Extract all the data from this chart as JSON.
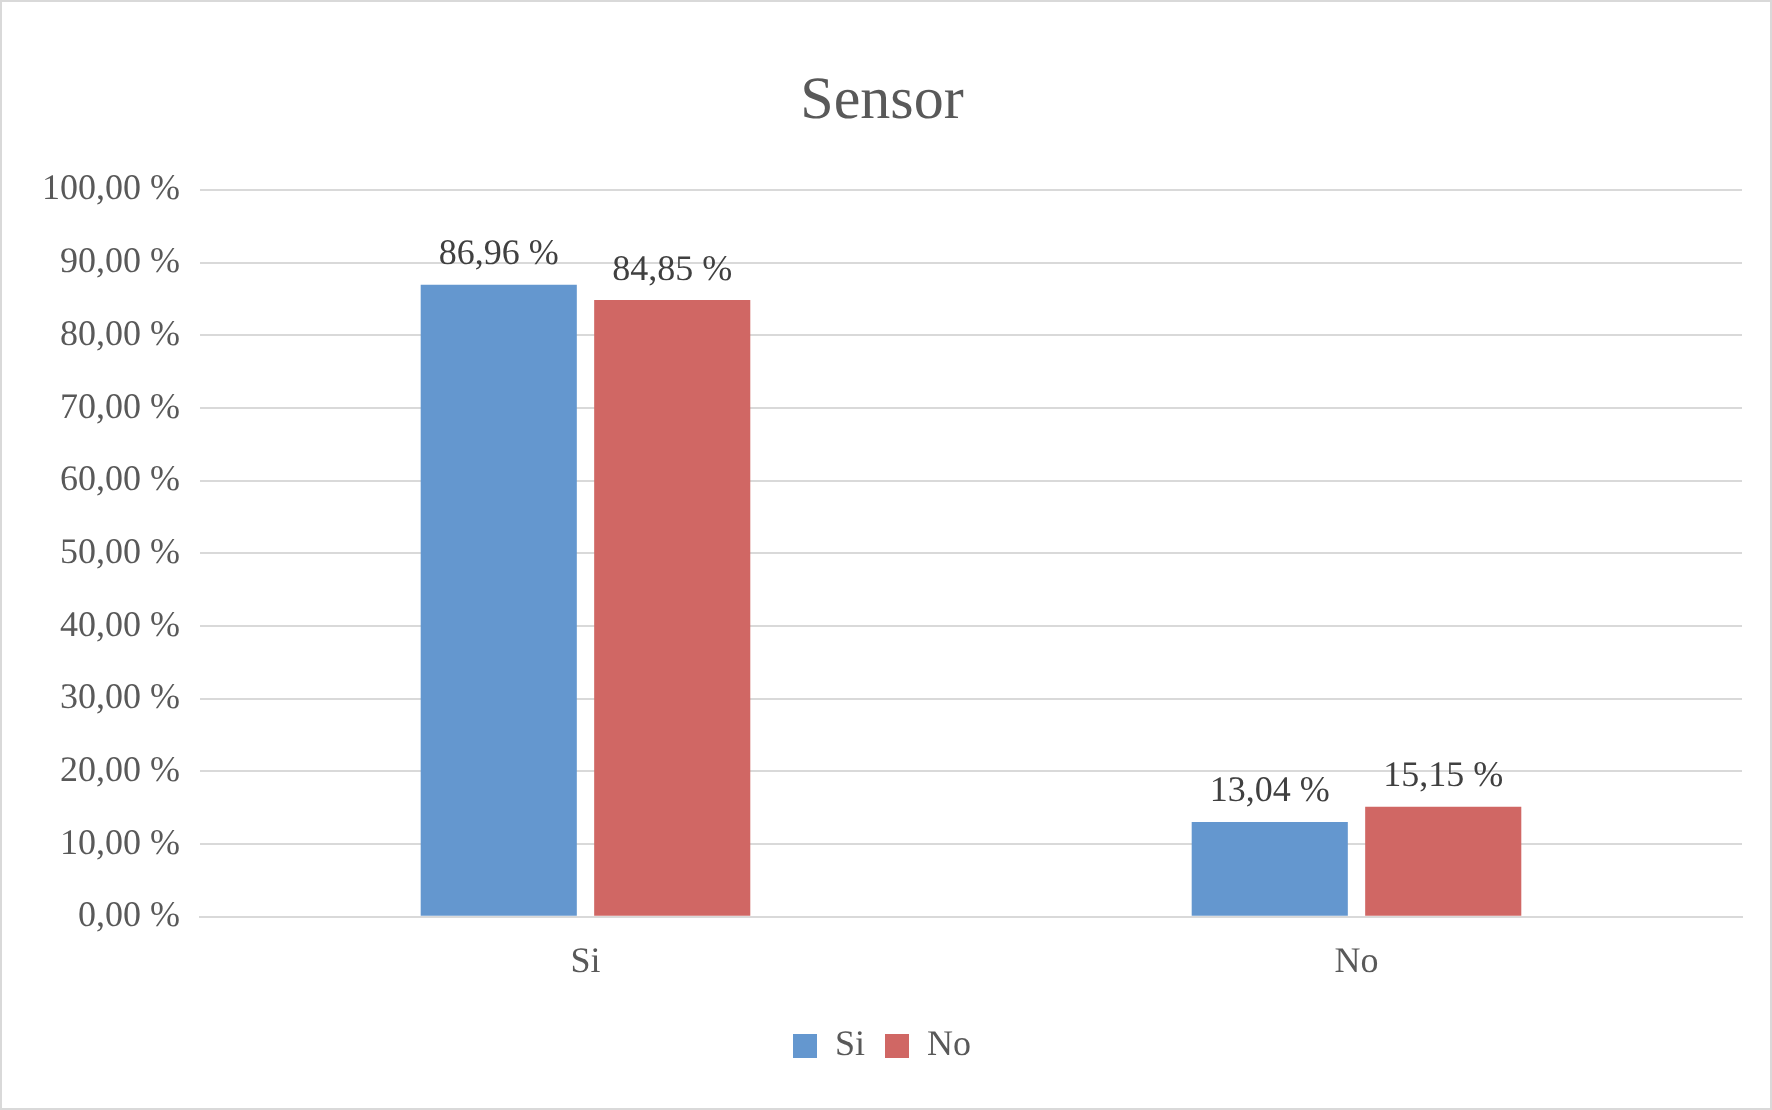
{
  "chart_data": {
    "type": "bar",
    "title": "Sensor",
    "categories": [
      "Si",
      "No"
    ],
    "series": [
      {
        "name": "Si",
        "color": "#6497cf",
        "values": [
          86.96,
          13.04
        ],
        "value_labels": [
          "86,96 %",
          "13,04 %"
        ]
      },
      {
        "name": "No",
        "color": "#d06764",
        "values": [
          84.85,
          15.15
        ],
        "value_labels": [
          "84,85 %",
          "15,15 %"
        ]
      }
    ],
    "ylim": [
      0,
      100
    ],
    "yticks": [
      {
        "value": 0,
        "label": "0,00 %"
      },
      {
        "value": 10,
        "label": "10,00 %"
      },
      {
        "value": 20,
        "label": "20,00 %"
      },
      {
        "value": 30,
        "label": "30,00 %"
      },
      {
        "value": 40,
        "label": "40,00 %"
      },
      {
        "value": 50,
        "label": "50,00 %"
      },
      {
        "value": 60,
        "label": "60,00 %"
      },
      {
        "value": 70,
        "label": "70,00 %"
      },
      {
        "value": 80,
        "label": "80,00 %"
      },
      {
        "value": 90,
        "label": "90,00 %"
      },
      {
        "value": 100,
        "label": "100,00 %"
      }
    ],
    "grid": "y",
    "legend": "bottom"
  }
}
